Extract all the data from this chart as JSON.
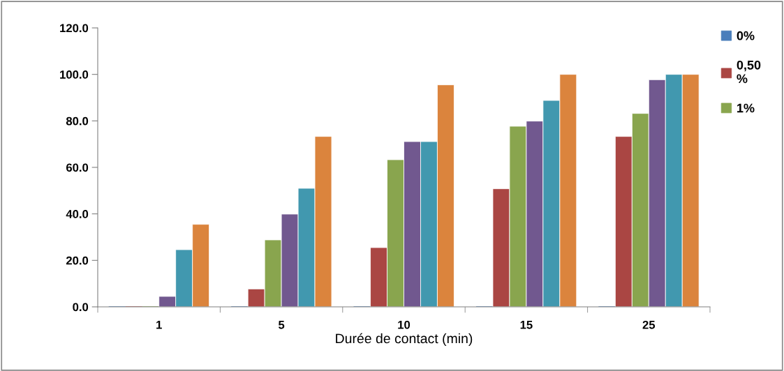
{
  "chart_data": {
    "type": "bar",
    "xlabel": "Durée de contact (min)",
    "categories": [
      "1",
      "5",
      "10",
      "15",
      "25"
    ],
    "series": [
      {
        "name": "0%",
        "color": "#4a7ebb",
        "values": [
          0,
          0,
          0,
          0,
          0
        ]
      },
      {
        "name": "0,50\n%",
        "color": "#aa4643",
        "values": [
          0,
          7.7,
          25.5,
          50.8,
          73.3
        ]
      },
      {
        "name": "1%",
        "color": "#89a54e",
        "values": [
          0,
          28.8,
          63.3,
          77.7,
          83.2
        ]
      },
      {
        "color": "#71588f",
        "values": [
          4.5,
          39.9,
          71.1,
          79.9,
          97.7
        ]
      },
      {
        "color": "#4198af",
        "values": [
          24.6,
          51.0,
          71.1,
          88.8,
          100
        ]
      },
      {
        "color": "#db843d",
        "values": [
          35.5,
          73.3,
          95.5,
          100,
          100
        ]
      }
    ],
    "ylim": [
      0,
      120
    ],
    "yticks": [
      {
        "value": 0,
        "label": "0.0"
      },
      {
        "value": 20,
        "label": "20.0"
      },
      {
        "value": 40,
        "label": "40.0"
      },
      {
        "value": 60,
        "label": "60.0"
      },
      {
        "value": 80,
        "label": "80.0"
      },
      {
        "value": 100,
        "label": "100.0"
      },
      {
        "value": 120,
        "label": "120.0"
      }
    ],
    "legend": "right"
  }
}
